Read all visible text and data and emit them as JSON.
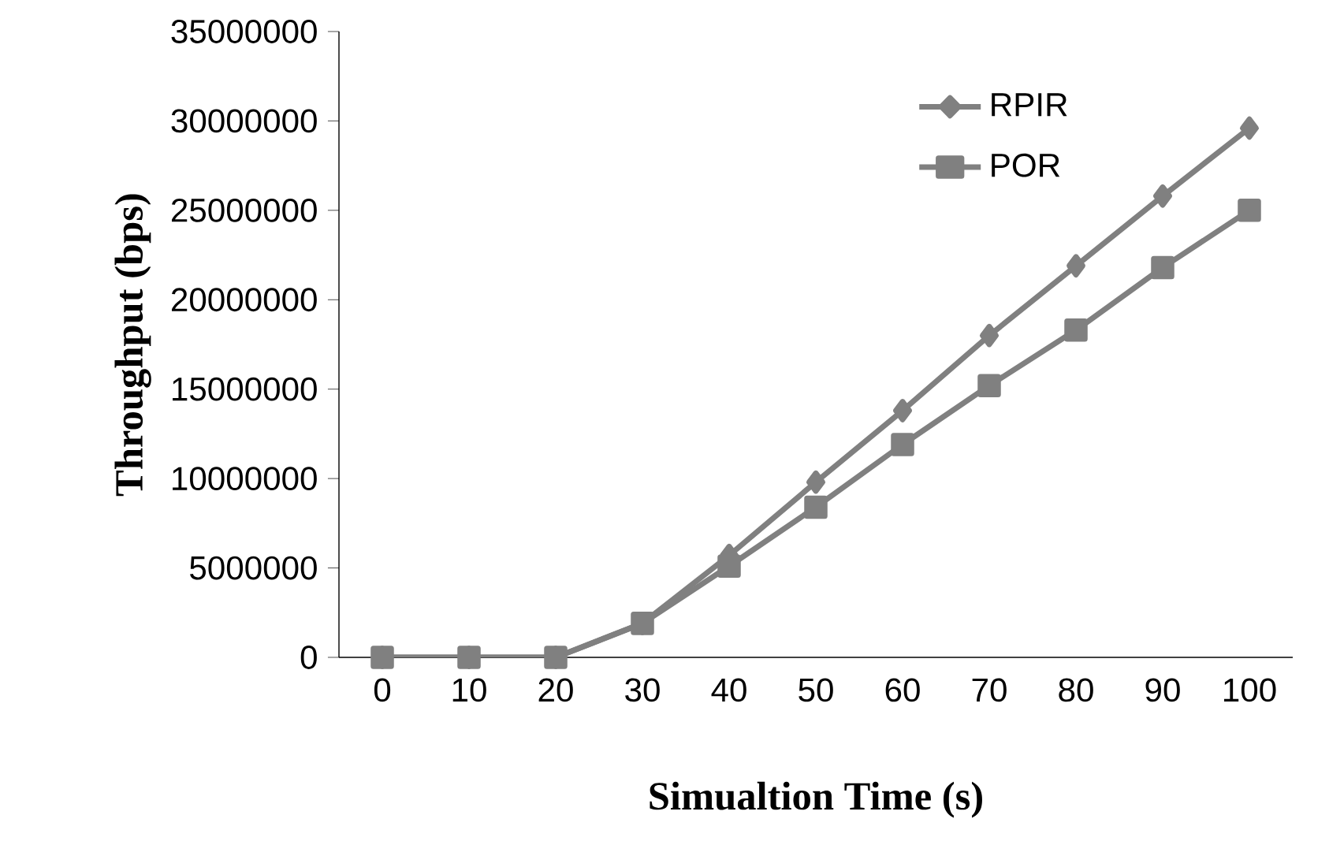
{
  "chart_data": {
    "type": "line",
    "xlabel": "Simualtion Time (s)",
    "ylabel": "Throughput (bps)",
    "categories": [
      "0",
      "10",
      "20",
      "30",
      "40",
      "50",
      "60",
      "70",
      "80",
      "90",
      "100"
    ],
    "series": [
      {
        "name": "RPIR",
        "color": "#808080",
        "marker": "diamond",
        "values": [
          0,
          0,
          0,
          1900000,
          5700000,
          9800000,
          13800000,
          18000000,
          21900000,
          25800000,
          29600000
        ]
      },
      {
        "name": "POR",
        "color": "#808080",
        "marker": "square",
        "values": [
          0,
          0,
          0,
          1900000,
          5100000,
          8400000,
          11900000,
          15200000,
          18300000,
          21800000,
          25000000
        ]
      }
    ],
    "ylim": [
      0,
      35000000
    ],
    "yticks": [
      0,
      5000000,
      10000000,
      15000000,
      20000000,
      25000000,
      30000000,
      35000000
    ],
    "grid": false,
    "legend": "top right",
    "line_style": "solid"
  }
}
